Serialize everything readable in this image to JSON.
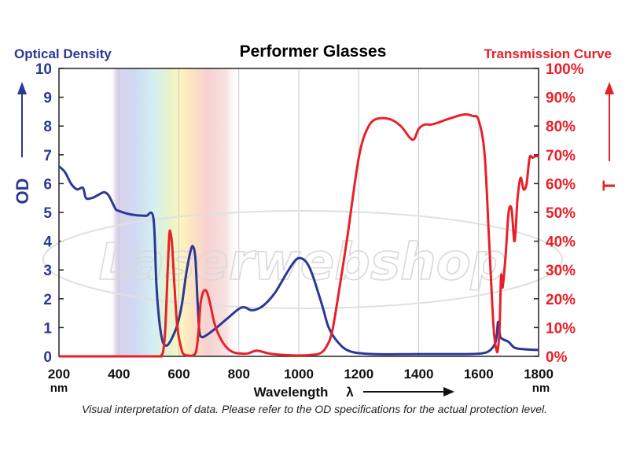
{
  "chart_data": {
    "type": "line",
    "title": "Performer Glasses",
    "left_axis_title": "Optical Density",
    "right_axis_title": "Transmission Curve",
    "left_axis_symbol": "OD",
    "right_axis_symbol": "T",
    "xlabel": "Wavelength",
    "xlabel_symbol": "λ",
    "x_unit": "nm",
    "xlim": [
      200,
      1800
    ],
    "x_ticks": [
      "200",
      "400",
      "600",
      "800",
      "1000",
      "1200",
      "1400",
      "1600",
      "1800"
    ],
    "ylim_left": [
      0,
      10
    ],
    "y_ticks_left": [
      "0",
      "1",
      "2",
      "3",
      "4",
      "5",
      "6",
      "7",
      "8",
      "9",
      "10"
    ],
    "ylim_right": [
      0,
      100
    ],
    "y_ticks_right": [
      "0%",
      "10%",
      "20%",
      "30%",
      "40%",
      "50%",
      "60%",
      "70%",
      "80%",
      "90%",
      "100%"
    ],
    "grid": true,
    "series": [
      {
        "name": "Optical Density",
        "axis": "left",
        "color": "#2c3896",
        "x": [
          200,
          220,
          240,
          260,
          280,
          290,
          310,
          330,
          350,
          365,
          380,
          390,
          400,
          430,
          460,
          490,
          515,
          525,
          535,
          545,
          555,
          565,
          580,
          595,
          610,
          625,
          640,
          648,
          655,
          662,
          668,
          675,
          690,
          720,
          760,
          800,
          820,
          845,
          880,
          920,
          960,
          990,
          1010,
          1030,
          1050,
          1080,
          1100,
          1130,
          1170,
          1250,
          1400,
          1550,
          1620,
          1650,
          1660,
          1665,
          1672,
          1680,
          1700,
          1720,
          1750,
          1800
        ],
        "values": [
          6.6,
          6.4,
          6.0,
          5.8,
          5.85,
          5.5,
          5.5,
          5.6,
          5.7,
          5.6,
          5.3,
          5.1,
          5.05,
          4.95,
          4.9,
          4.88,
          4.8,
          2.5,
          1.2,
          0.55,
          0.38,
          0.42,
          0.7,
          1.1,
          1.8,
          2.9,
          3.7,
          3.8,
          3.4,
          2.0,
          0.9,
          0.68,
          0.72,
          0.95,
          1.3,
          1.65,
          1.7,
          1.6,
          1.75,
          2.2,
          2.9,
          3.35,
          3.4,
          3.2,
          2.7,
          1.7,
          1.0,
          0.5,
          0.18,
          0.08,
          0.08,
          0.08,
          0.12,
          0.35,
          0.7,
          1.2,
          0.7,
          0.6,
          0.5,
          0.3,
          0.25,
          0.22
        ]
      },
      {
        "name": "Transmission Curve",
        "axis": "right",
        "color": "#e8202a",
        "x": [
          200,
          400,
          530,
          540,
          548,
          555,
          562,
          568,
          572,
          578,
          585,
          595,
          610,
          620,
          630,
          640,
          650,
          658,
          665,
          672,
          680,
          688,
          695,
          705,
          720,
          740,
          760,
          780,
          800,
          830,
          860,
          900,
          950,
          1000,
          1040,
          1070,
          1090,
          1110,
          1130,
          1160,
          1180,
          1200,
          1220,
          1250,
          1300,
          1340,
          1370,
          1385,
          1400,
          1420,
          1440,
          1460,
          1500,
          1550,
          1580,
          1600,
          1620,
          1635,
          1650,
          1660,
          1665,
          1670,
          1675,
          1680,
          1690,
          1700,
          1710,
          1720,
          1730,
          1740,
          1750,
          1760,
          1770,
          1780,
          1790,
          1800
        ],
        "values": [
          0,
          0,
          0,
          0.2,
          2,
          10,
          28,
          42,
          43,
          38,
          25,
          10,
          2,
          0.5,
          0.3,
          0.2,
          0.5,
          2,
          8,
          18,
          22,
          23,
          22,
          18,
          11,
          6,
          3,
          1.5,
          1,
          1,
          2,
          1,
          0.5,
          0.3,
          0.5,
          1,
          3,
          8,
          20,
          40,
          55,
          69,
          77,
          82,
          82.5,
          80,
          76,
          75.5,
          79,
          80.5,
          80.5,
          81,
          82.5,
          84,
          83.5,
          82,
          70,
          40,
          10,
          2,
          3,
          10,
          28,
          24,
          35,
          50,
          51,
          40,
          55,
          62,
          58,
          60,
          69,
          69,
          69.5,
          69.5
        ]
      }
    ],
    "annotation": "Visual interpretation of data. Please refer to the OD specifications for the actual protection level.",
    "watermark": "Laserwebshop"
  }
}
